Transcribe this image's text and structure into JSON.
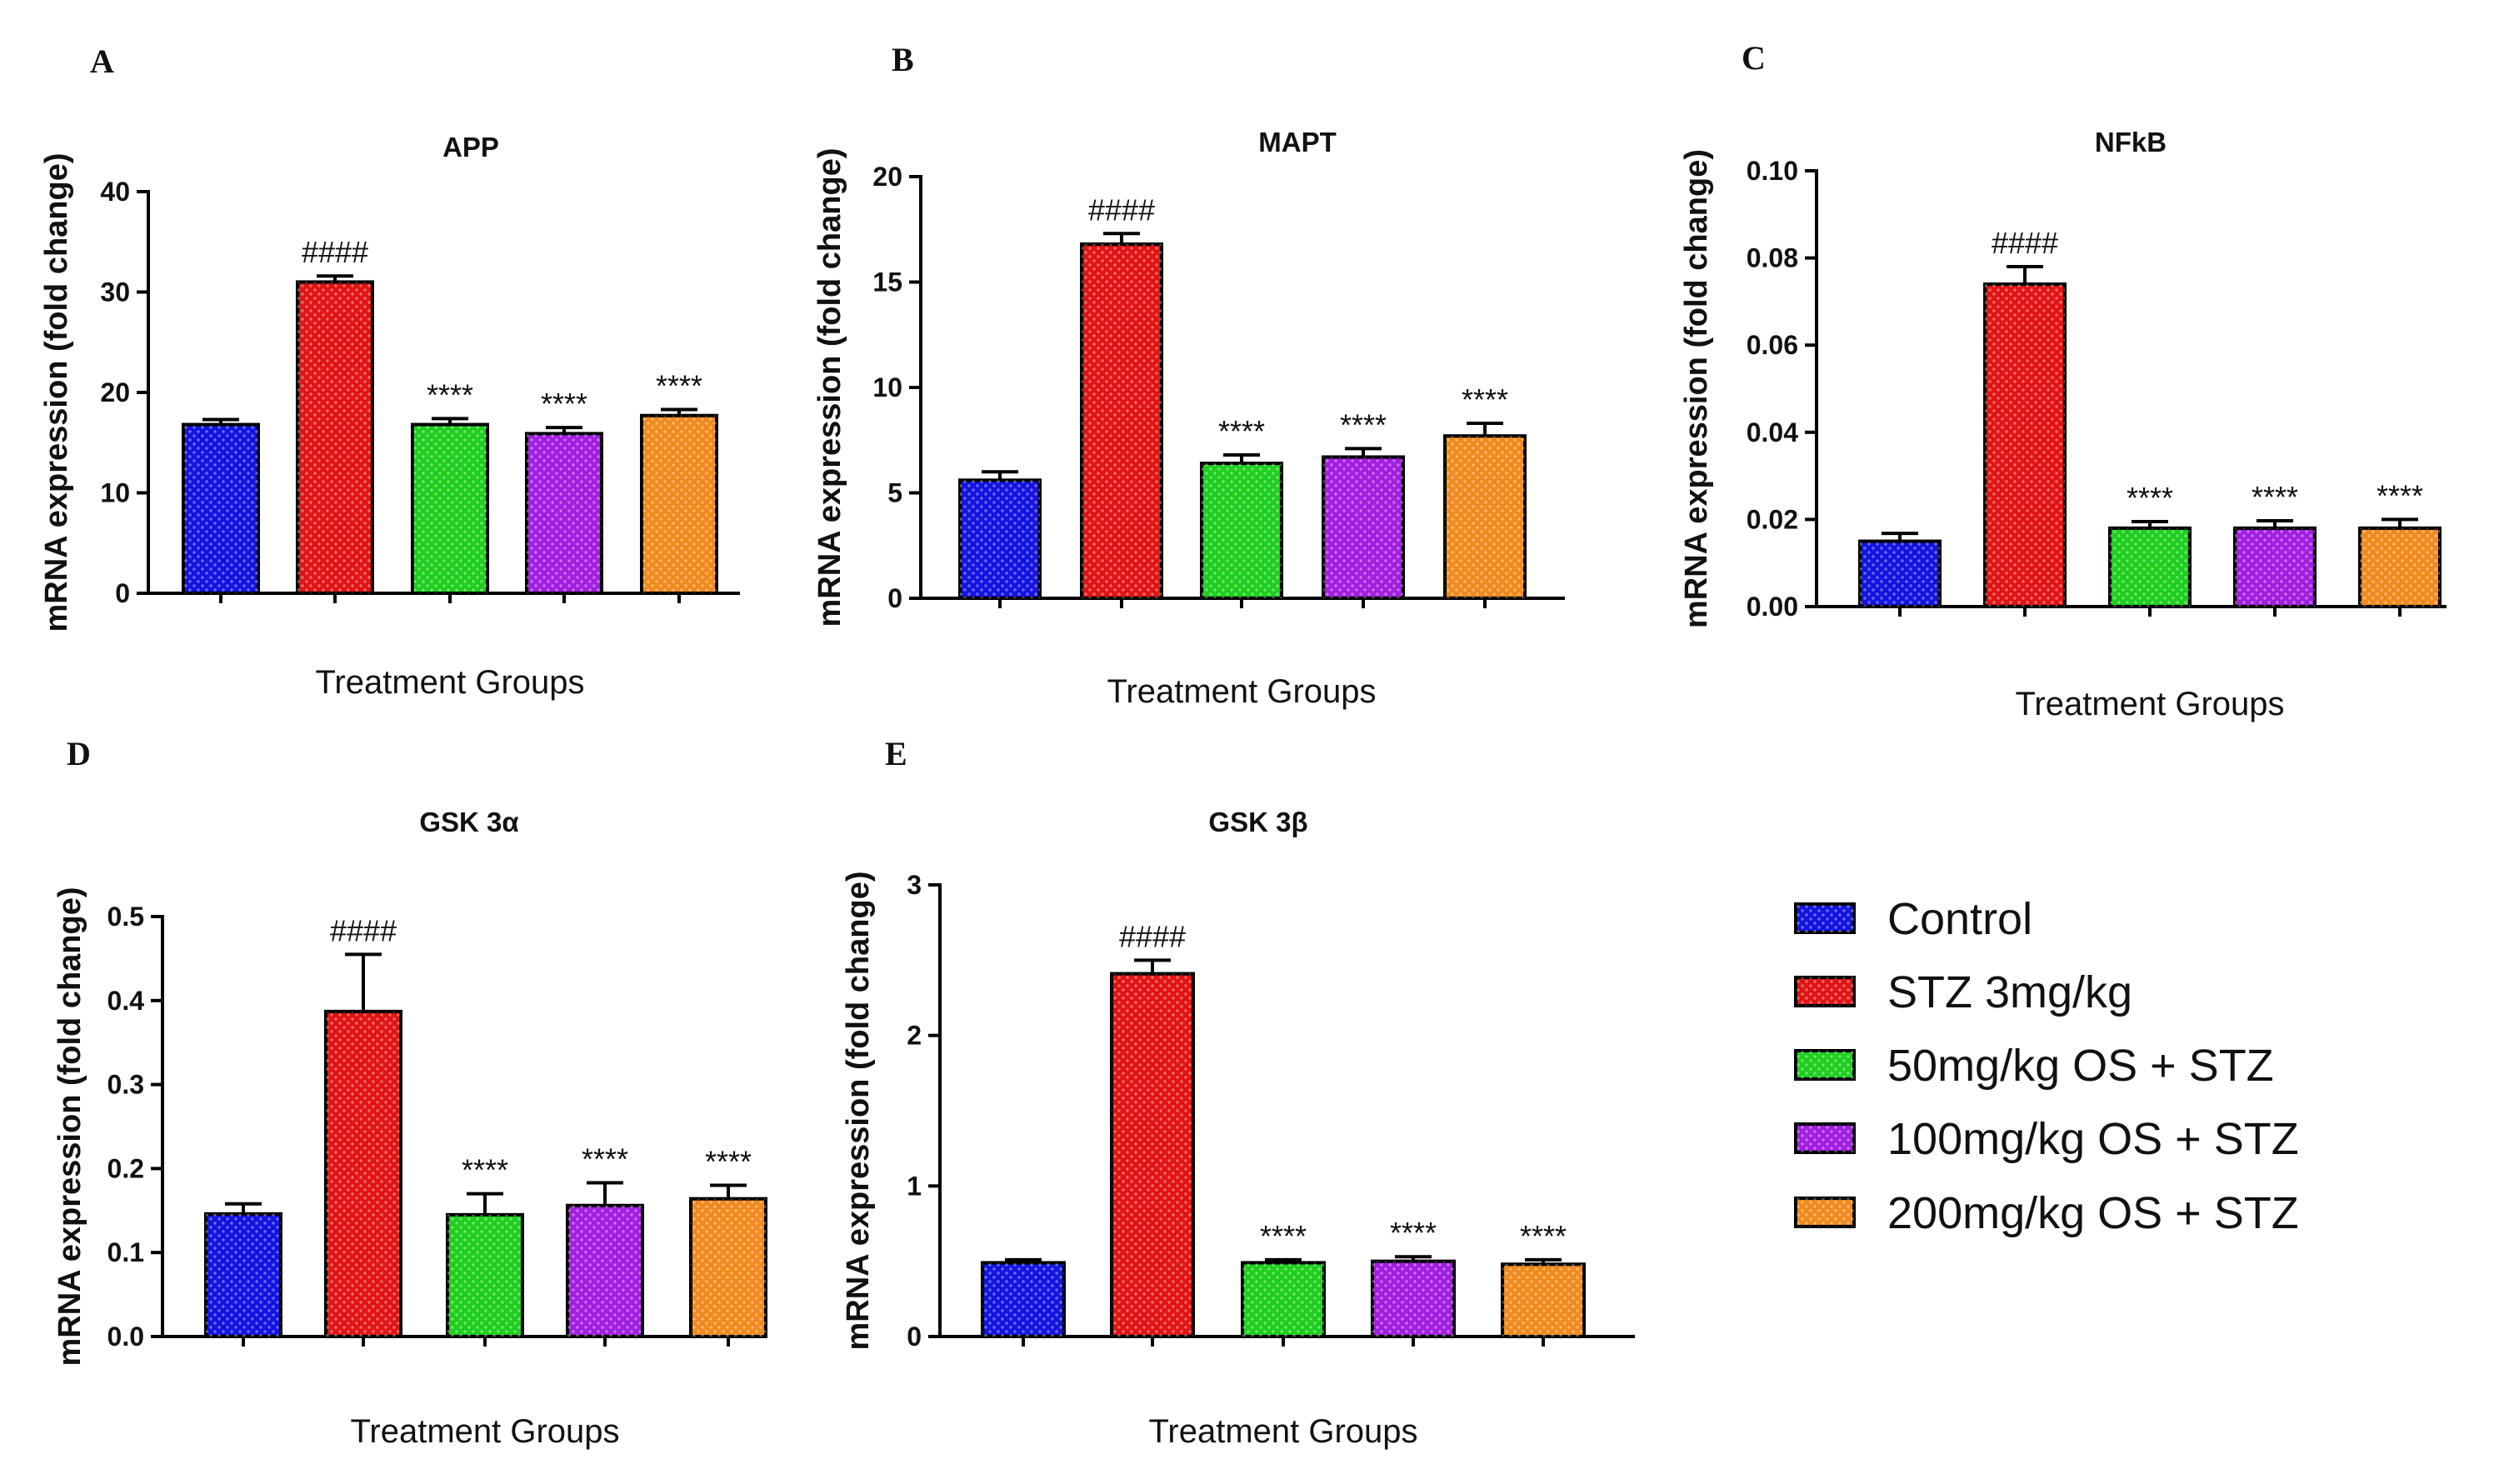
{
  "chart_data": [
    {
      "panel": "A",
      "type": "bar",
      "title": "APP",
      "xlabel": "Treatment Groups",
      "ylabel": "mRNA expression (fold change)",
      "ylim": [
        0,
        40
      ],
      "yticks": [
        "0",
        "10",
        "20",
        "30",
        "40"
      ],
      "categories": [
        "Control",
        "STZ 3mg/kg",
        "50mg/kg OS + STZ",
        "100mg/kg OS + STZ",
        "200mg/kg OS + STZ"
      ],
      "values": [
        16.8,
        31.0,
        16.8,
        15.9,
        17.7
      ],
      "errors": [
        0.5,
        0.6,
        0.6,
        0.6,
        0.6
      ],
      "annotations": [
        "",
        "####",
        "****",
        "****",
        "****"
      ]
    },
    {
      "panel": "B",
      "type": "bar",
      "title": "MAPT",
      "xlabel": "Treatment Groups",
      "ylabel": "mRNA expression (fold change)",
      "ylim": [
        0,
        20
      ],
      "yticks": [
        "0",
        "5",
        "10",
        "15",
        "20"
      ],
      "categories": [
        "Control",
        "STZ 3mg/kg",
        "50mg/kg OS + STZ",
        "100mg/kg OS + STZ",
        "200mg/kg OS + STZ"
      ],
      "values": [
        5.6,
        16.8,
        6.4,
        6.7,
        7.7
      ],
      "errors": [
        0.4,
        0.5,
        0.4,
        0.4,
        0.6
      ],
      "annotations": [
        "",
        "####",
        "****",
        "****",
        "****"
      ]
    },
    {
      "panel": "C",
      "type": "bar",
      "title": "NFkB",
      "xlabel": "Treatment Groups",
      "ylabel": "mRNA expression (fold change)",
      "ylim": [
        0,
        0.1
      ],
      "yticks": [
        "0.00",
        "0.02",
        "0.04",
        "0.06",
        "0.08",
        "0.10"
      ],
      "categories": [
        "Control",
        "STZ 3mg/kg",
        "50mg/kg OS + STZ",
        "100mg/kg OS + STZ",
        "200mg/kg OS + STZ"
      ],
      "values": [
        0.015,
        0.074,
        0.018,
        0.018,
        0.018
      ],
      "errors": [
        0.0018,
        0.004,
        0.0015,
        0.0017,
        0.002
      ],
      "annotations": [
        "",
        "####",
        "****",
        "****",
        "****"
      ]
    },
    {
      "panel": "D",
      "type": "bar",
      "title": "GSK 3α",
      "xlabel": "Treatment Groups",
      "ylabel": "mRNA expression (fold change)",
      "ylim": [
        0,
        0.5
      ],
      "yticks": [
        "0.0",
        "0.1",
        "0.2",
        "0.3",
        "0.4",
        "0.5"
      ],
      "categories": [
        "Control",
        "STZ 3mg/kg",
        "50mg/kg OS + STZ",
        "100mg/kg OS + STZ",
        "200mg/kg OS + STZ"
      ],
      "values": [
        0.146,
        0.387,
        0.145,
        0.156,
        0.164
      ],
      "errors": [
        0.012,
        0.068,
        0.025,
        0.027,
        0.016
      ],
      "annotations": [
        "",
        "####",
        "****",
        "****",
        "****"
      ]
    },
    {
      "panel": "E",
      "type": "bar",
      "title": "GSK 3β",
      "xlabel": "Treatment Groups",
      "ylabel": "mRNA expression (fold change)",
      "ylim": [
        0,
        3
      ],
      "yticks": [
        "0",
        "1",
        "2",
        "3"
      ],
      "categories": [
        "Control",
        "STZ 3mg/kg",
        "50mg/kg OS + STZ",
        "100mg/kg OS + STZ",
        "200mg/kg OS + STZ"
      ],
      "values": [
        0.49,
        2.41,
        0.49,
        0.5,
        0.48
      ],
      "errors": [
        0.02,
        0.09,
        0.02,
        0.03,
        0.03
      ],
      "annotations": [
        "",
        "####",
        "****",
        "****",
        "****"
      ]
    }
  ],
  "legend": {
    "placement": "right",
    "entries": [
      {
        "label": "Control",
        "color": "#1414e0"
      },
      {
        "label": "STZ 3mg/kg",
        "color": "#e01414"
      },
      {
        "label": "50mg/kg OS + STZ",
        "color": "#1ecf1e"
      },
      {
        "label": "100mg/kg OS + STZ",
        "color": "#a21ee0"
      },
      {
        "label": "200mg/kg OS + STZ",
        "color": "#f08a1e"
      }
    ]
  }
}
